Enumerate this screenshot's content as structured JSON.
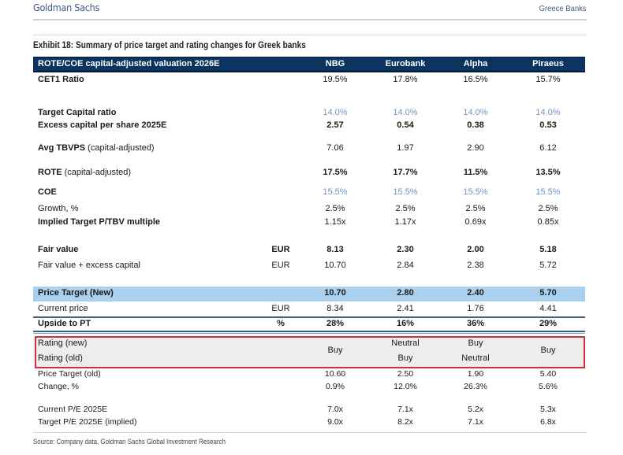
{
  "header": {
    "brand": "Goldman Sachs",
    "section": "Greece Banks"
  },
  "exhibit_title": "Exhibit 18: Summary of price target and rating changes for Greek banks",
  "table": {
    "header_label": "ROTE/COE capital-adjusted valuation 2026E",
    "columns": [
      "NBG",
      "Eurobank",
      "Alpha",
      "Piraeus"
    ],
    "rows": [
      {
        "label": "CET1 Ratio",
        "unit": "",
        "values": [
          "19.5%",
          "17.8%",
          "16.5%",
          "15.7%"
        ]
      },
      {
        "label": "Target Capital ratio",
        "unit": "",
        "values": [
          "14.0%",
          "14.0%",
          "14.0%",
          "14.0%"
        ]
      },
      {
        "label": "Excess capital per share 2025E",
        "unit": "",
        "values": [
          "2.57",
          "0.54",
          "0.38",
          "0.53"
        ]
      },
      {
        "label": "Avg TBVPS (capital-adjusted)",
        "unit": "",
        "values": [
          "7.06",
          "1.97",
          "2.90",
          "6.12"
        ]
      },
      {
        "label": "ROTE (capital-adjusted)",
        "unit": "",
        "values": [
          "17.5%",
          "17.7%",
          "11.5%",
          "13.5%"
        ]
      },
      {
        "label": "COE",
        "unit": "",
        "values": [
          "15.5%",
          "15.5%",
          "15.5%",
          "15.5%"
        ]
      },
      {
        "label": "Growth, %",
        "unit": "",
        "values": [
          "2.5%",
          "2.5%",
          "2.5%",
          "2.5%"
        ]
      },
      {
        "label": "Implied Target P/TBV multiple",
        "unit": "",
        "values": [
          "1.15x",
          "1.17x",
          "0.69x",
          "0.85x"
        ]
      },
      {
        "label": "Fair value",
        "unit": "EUR",
        "values": [
          "8.13",
          "2.30",
          "2.00",
          "5.18"
        ]
      },
      {
        "label": "Fair value + excess capital",
        "unit": "EUR",
        "values": [
          "10.70",
          "2.84",
          "2.38",
          "5.72"
        ]
      },
      {
        "label": "Price Target (New)",
        "unit": "",
        "values": [
          "10.70",
          "2.80",
          "2.40",
          "5.70"
        ]
      },
      {
        "label": "Current price",
        "unit": "EUR",
        "values": [
          "8.34",
          "2.41",
          "1.76",
          "4.41"
        ]
      },
      {
        "label": "Upside to PT",
        "unit": "%",
        "values": [
          "28%",
          "16%",
          "36%",
          "29%"
        ]
      },
      {
        "label": "Price Target (old)",
        "unit": "",
        "values": [
          "10.60",
          "2.50",
          "1.90",
          "5.40"
        ]
      },
      {
        "label": "Change, %",
        "unit": "",
        "values": [
          "0.9%",
          "12.0%",
          "26.3%",
          "5.6%"
        ]
      },
      {
        "label": "Current P/E 2025E",
        "unit": "",
        "values": [
          "7.0x",
          "7.1x",
          "5.2x",
          "5.3x"
        ]
      },
      {
        "label": "Target P/E 2025E (implied)",
        "unit": "",
        "values": [
          "9.0x",
          "8.2x",
          "7.1x",
          "6.8x"
        ]
      }
    ],
    "rating": {
      "new_label": "Rating (new)",
      "old_label": "Rating (old)",
      "nbg": "Buy",
      "eurobank_new": "Neutral",
      "eurobank_old": "Buy",
      "alpha_new": "Buy",
      "alpha_old": "Neutral",
      "piraeus": "Buy"
    }
  },
  "source": "Source: Company data, Goldman Sachs Global Investment Research",
  "colors": {
    "header_bar": "#0b3560",
    "highlight_bar": "#a9d0ee",
    "target_blue_text": "#6d95c6",
    "rating_box_border": "#c8323a",
    "rating_box_fill": "#ededed"
  }
}
